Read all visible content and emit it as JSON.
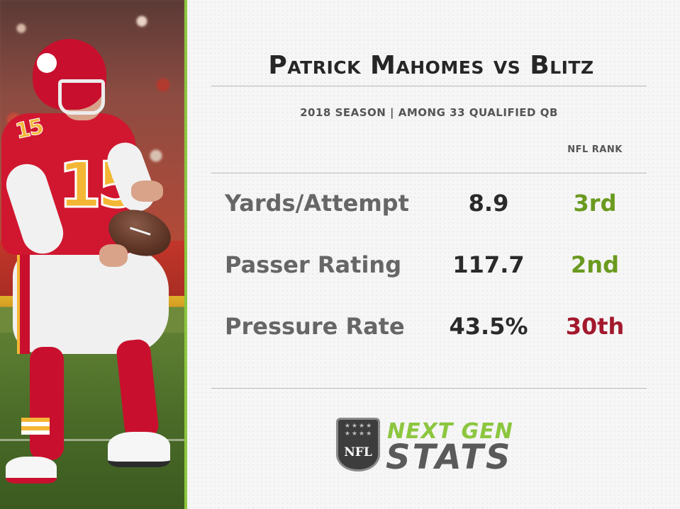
{
  "title": "Patrick Mahomes vs Blitz",
  "subtitle": "2018 SEASON  |  AMONG 33 QUALIFIED QB",
  "rank_header": "NFL RANK",
  "stats": [
    {
      "label": "Yards/Attempt",
      "value": "8.9",
      "rank": "3rd",
      "rank_color": "#6a9a1f"
    },
    {
      "label": "Passer Rating",
      "value": "117.7",
      "rank": "2nd",
      "rank_color": "#6a9a1f"
    },
    {
      "label": "Pressure Rate",
      "value": "43.5%",
      "rank": "30th",
      "rank_color": "#a3182d"
    }
  ],
  "photo": {
    "jersey_number": "15",
    "sleeve_number": "15"
  },
  "logo": {
    "shield_text": "NFL",
    "top_word": "NEXT GEN",
    "bottom_word": "STATS",
    "accent_color": "#8cc63f"
  },
  "colors": {
    "divider": "#8cc63f",
    "good_rank": "#6a9a1f",
    "bad_rank": "#a3182d"
  }
}
